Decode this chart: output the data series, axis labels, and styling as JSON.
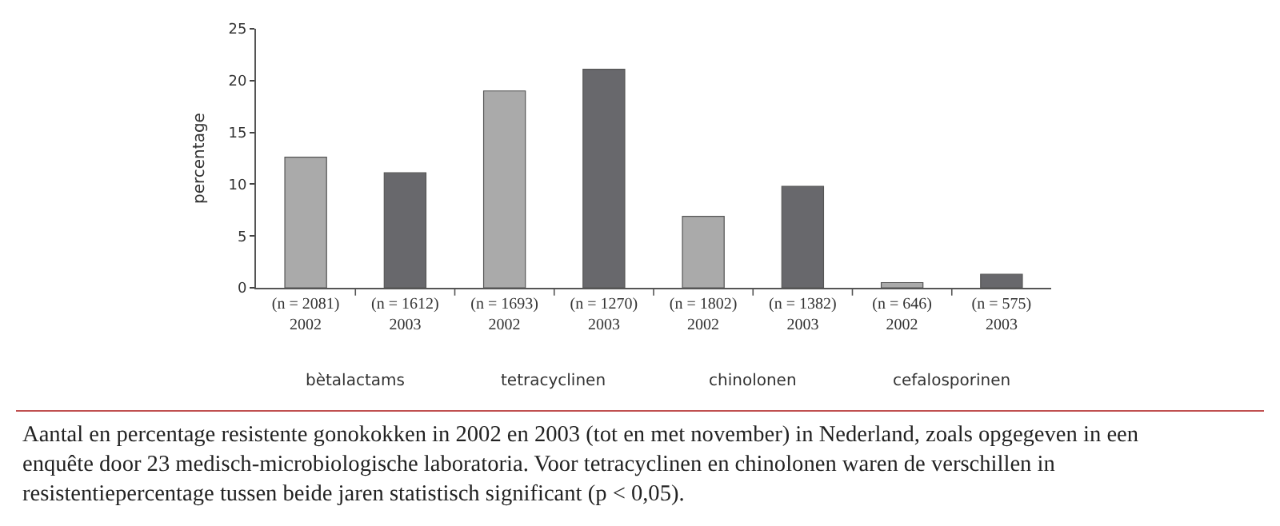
{
  "chart_data": {
    "type": "bar",
    "ylabel": "percentage",
    "categories": [
      "(n = 2081)\n2002",
      "(n = 1612)\n2003",
      "(n = 1693)\n2002",
      "(n = 1270)\n2003",
      "(n = 1802)\n2002",
      "(n = 1382)\n2003",
      "(n = 646)\n2002",
      "(n = 575)\n2003"
    ],
    "values": [
      12.6,
      11.1,
      19.0,
      21.1,
      6.9,
      9.8,
      0.5,
      1.3
    ],
    "colors": [
      "#aaaaaa",
      "#68686c",
      "#aaaaaa",
      "#68686c",
      "#aaaaaa",
      "#68686c",
      "#aaaaaa",
      "#68686c"
    ],
    "ylim": [
      0,
      25
    ],
    "yticks": [
      0,
      5,
      10,
      15,
      20,
      25
    ],
    "annotations": [
      "bètalactams",
      "tetracyclinen",
      "chinolonen",
      "cefalosporinen",
      "Aantal en percentage resistente gonokokken in 2002 en 2003 (tot en met november) in Nederland, zoals opgegeven in een enquête door 23 medisch-microbiologische laboratoria. Voor tetracyclinen en chinolonen waren de verschillen in resistentiepercentage tussen beide jaren statistisch significant (p < 0,05)."
    ]
  }
}
